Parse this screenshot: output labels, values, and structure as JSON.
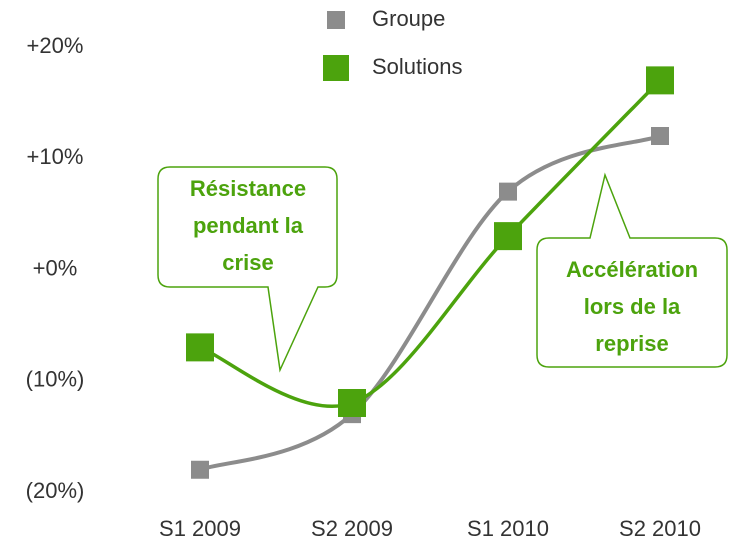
{
  "chart_data": {
    "type": "line",
    "categories": [
      "S1 2009",
      "S2 2009",
      "S1 2010",
      "S2 2010"
    ],
    "series": [
      {
        "name": "Groupe",
        "color": "#8c8c8c",
        "values": [
          -18,
          -13,
          7,
          12
        ]
      },
      {
        "name": "Solutions",
        "color": "#4ca30d",
        "values": [
          -7,
          -12,
          3,
          17
        ]
      }
    ],
    "ylim": [
      -20,
      20
    ],
    "yticks": [
      {
        "value": 20,
        "label": "+20%"
      },
      {
        "value": 10,
        "label": "+10%"
      },
      {
        "value": 0,
        "label": "+0%"
      },
      {
        "value": -10,
        "label": "(10%)"
      },
      {
        "value": -20,
        "label": "(20%)"
      }
    ],
    "grid": false,
    "legend": "top",
    "annotations": [
      {
        "lines": [
          "Résistance",
          "pendant la",
          "crise"
        ]
      },
      {
        "lines": [
          "Accélération",
          "lors de la",
          "reprise"
        ]
      }
    ]
  }
}
